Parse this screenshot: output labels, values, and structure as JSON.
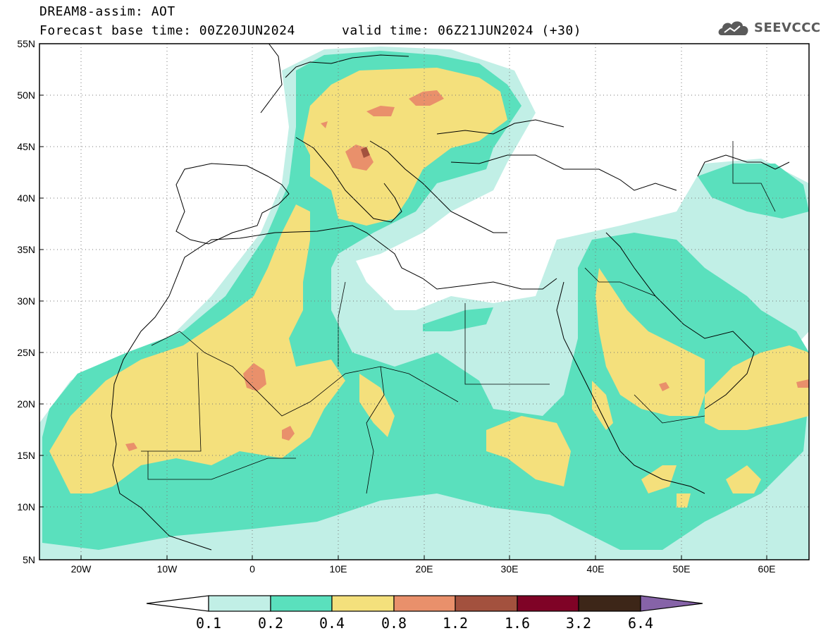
{
  "header": {
    "model": "DREAM8-assim: AOT",
    "base_time": "Forecast base time: 00Z20JUN2024",
    "valid_time": "valid time: 06Z21JUN2024 (+30)"
  },
  "logo": {
    "text": "SEEVCCC",
    "icon": "cloud-icon"
  },
  "map": {
    "lat_labels": [
      "55N",
      "50N",
      "45N",
      "40N",
      "35N",
      "30N",
      "25N",
      "20N",
      "15N",
      "10N",
      "5N"
    ],
    "lon_labels": [
      "20W",
      "10W",
      "0",
      "10E",
      "20E",
      "30E",
      "40E",
      "50E",
      "60E"
    ],
    "grid": "dotted"
  },
  "colorbar": {
    "labels": [
      "0.1",
      "0.2",
      "0.4",
      "0.8",
      "1.2",
      "1.6",
      "3.2",
      "6.4"
    ],
    "colors": [
      "#ffffff",
      "#c1efe6",
      "#5ae0bd",
      "#f4e07c",
      "#e9906b",
      "#a3513e",
      "#7f0326",
      "#3d2618",
      "#8663a8"
    ]
  },
  "legend_colors": {
    "very_low": "#c1efe6",
    "low": "#5ae0bd",
    "moderate": "#f4e07c",
    "high": "#e9906b",
    "very_high": "#a3513e"
  }
}
